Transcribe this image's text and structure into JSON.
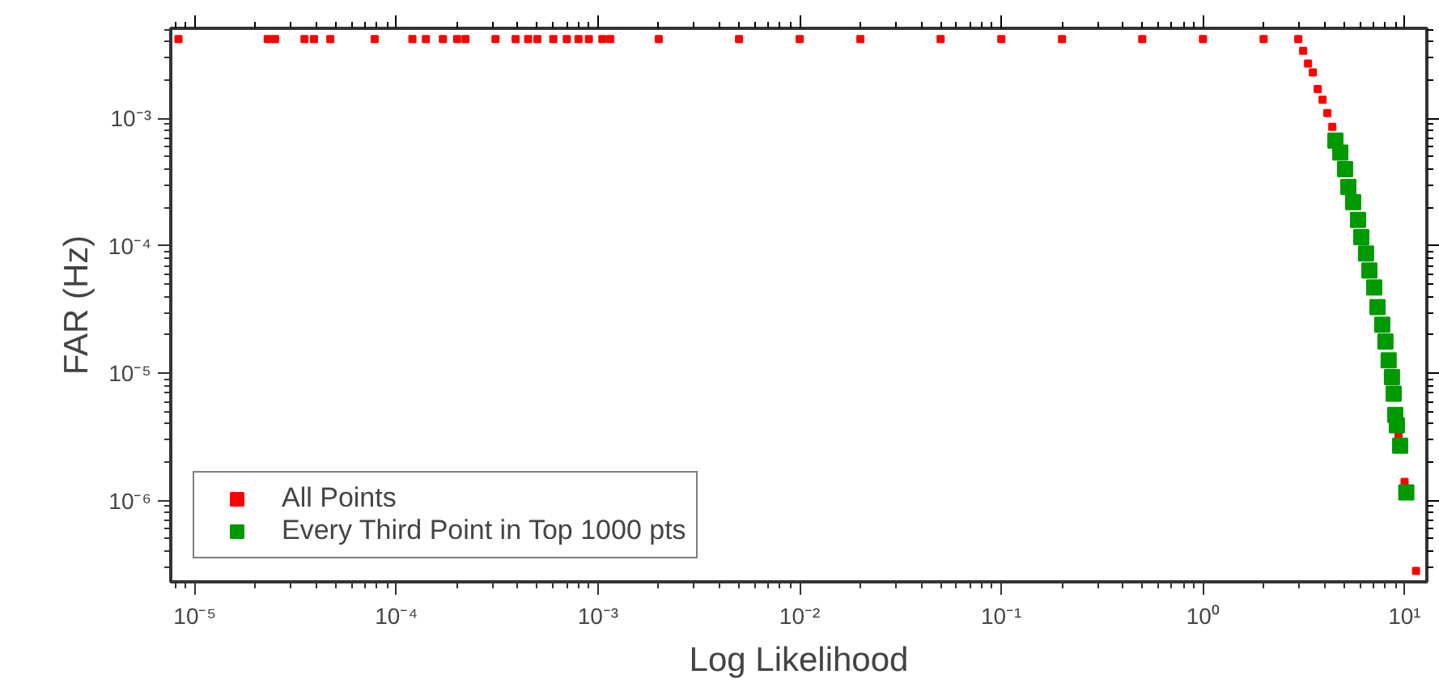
{
  "chart_data": {
    "type": "scatter",
    "xlabel": "Log Likelihood",
    "ylabel": "FAR (Hz)",
    "log": "xy",
    "marker": "square",
    "legend": "bottom left",
    "grid": false,
    "xlim": [
      7.6e-06,
      12.9
    ],
    "ylim": [
      2.3e-07,
      0.0051
    ],
    "xticks": [
      {
        "value": 1e-05,
        "label": "10⁻⁵"
      },
      {
        "value": 0.0001,
        "label": "10⁻⁴"
      },
      {
        "value": 0.001,
        "label": "10⁻³"
      },
      {
        "value": 0.01,
        "label": "10⁻²"
      },
      {
        "value": 0.1,
        "label": "10⁻¹"
      },
      {
        "value": 1,
        "label": "10⁰"
      },
      {
        "value": 10,
        "label": "10¹"
      }
    ],
    "yticks": [
      {
        "value": 1e-06,
        "label": "10⁻⁶"
      },
      {
        "value": 1e-05,
        "label": "10⁻⁵"
      },
      {
        "value": 0.0001,
        "label": "10⁻⁴"
      },
      {
        "value": 0.001,
        "label": "10⁻³"
      }
    ],
    "series": [
      {
        "name": "All Points",
        "color": "#ff0000",
        "x": [
          8.3e-06,
          2.3e-05,
          2.5e-05,
          3.5e-05,
          3.9e-05,
          4.7e-05,
          7.8e-05,
          0.00012,
          0.00014,
          0.00017,
          0.0002,
          0.00022,
          0.00031,
          0.00039,
          0.00045,
          0.0005,
          0.0006,
          0.0007,
          0.0008,
          0.0009,
          0.00105,
          0.00115,
          0.002,
          0.005,
          0.01,
          0.02,
          0.05,
          0.1,
          0.2,
          0.5,
          1,
          2,
          2.97,
          3.14,
          3.32,
          3.51,
          3.71,
          3.92,
          4.14,
          4.38,
          9.33,
          10.0,
          11.4
        ],
        "values": [
          0.0042,
          0.0042,
          0.0042,
          0.0042,
          0.0042,
          0.0042,
          0.0042,
          0.0042,
          0.0042,
          0.0042,
          0.0042,
          0.0042,
          0.0042,
          0.0042,
          0.0042,
          0.0042,
          0.0042,
          0.0042,
          0.0042,
          0.0042,
          0.0042,
          0.0042,
          0.0042,
          0.0042,
          0.0042,
          0.0042,
          0.0042,
          0.0042,
          0.0042,
          0.0042,
          0.0042,
          0.0042,
          0.0042,
          0.0034,
          0.0027,
          0.0023,
          0.0017,
          0.0014,
          0.0011,
          0.00086,
          3.3e-06,
          1.4e-06,
          2.8e-07
        ]
      },
      {
        "name": "Every Third Point in Top 1000 pts",
        "color": "#009900",
        "x": [
          4.54,
          4.8,
          5.07,
          5.26,
          5.56,
          5.88,
          6.1,
          6.44,
          6.69,
          7.07,
          7.34,
          7.75,
          8.04,
          8.34,
          8.66,
          8.83,
          8.99,
          9.16,
          9.51,
          10.2
        ],
        "values": [
          0.00067,
          0.00054,
          0.0004,
          0.00029,
          0.00022,
          0.00016,
          0.000117,
          8.7e-05,
          6.4e-05,
          4.7e-05,
          3.3e-05,
          2.4e-05,
          1.77e-05,
          1.26e-05,
          9.3e-06,
          6.9e-06,
          4.7e-06,
          3.9e-06,
          2.7e-06,
          1.16e-06
        ]
      }
    ]
  }
}
